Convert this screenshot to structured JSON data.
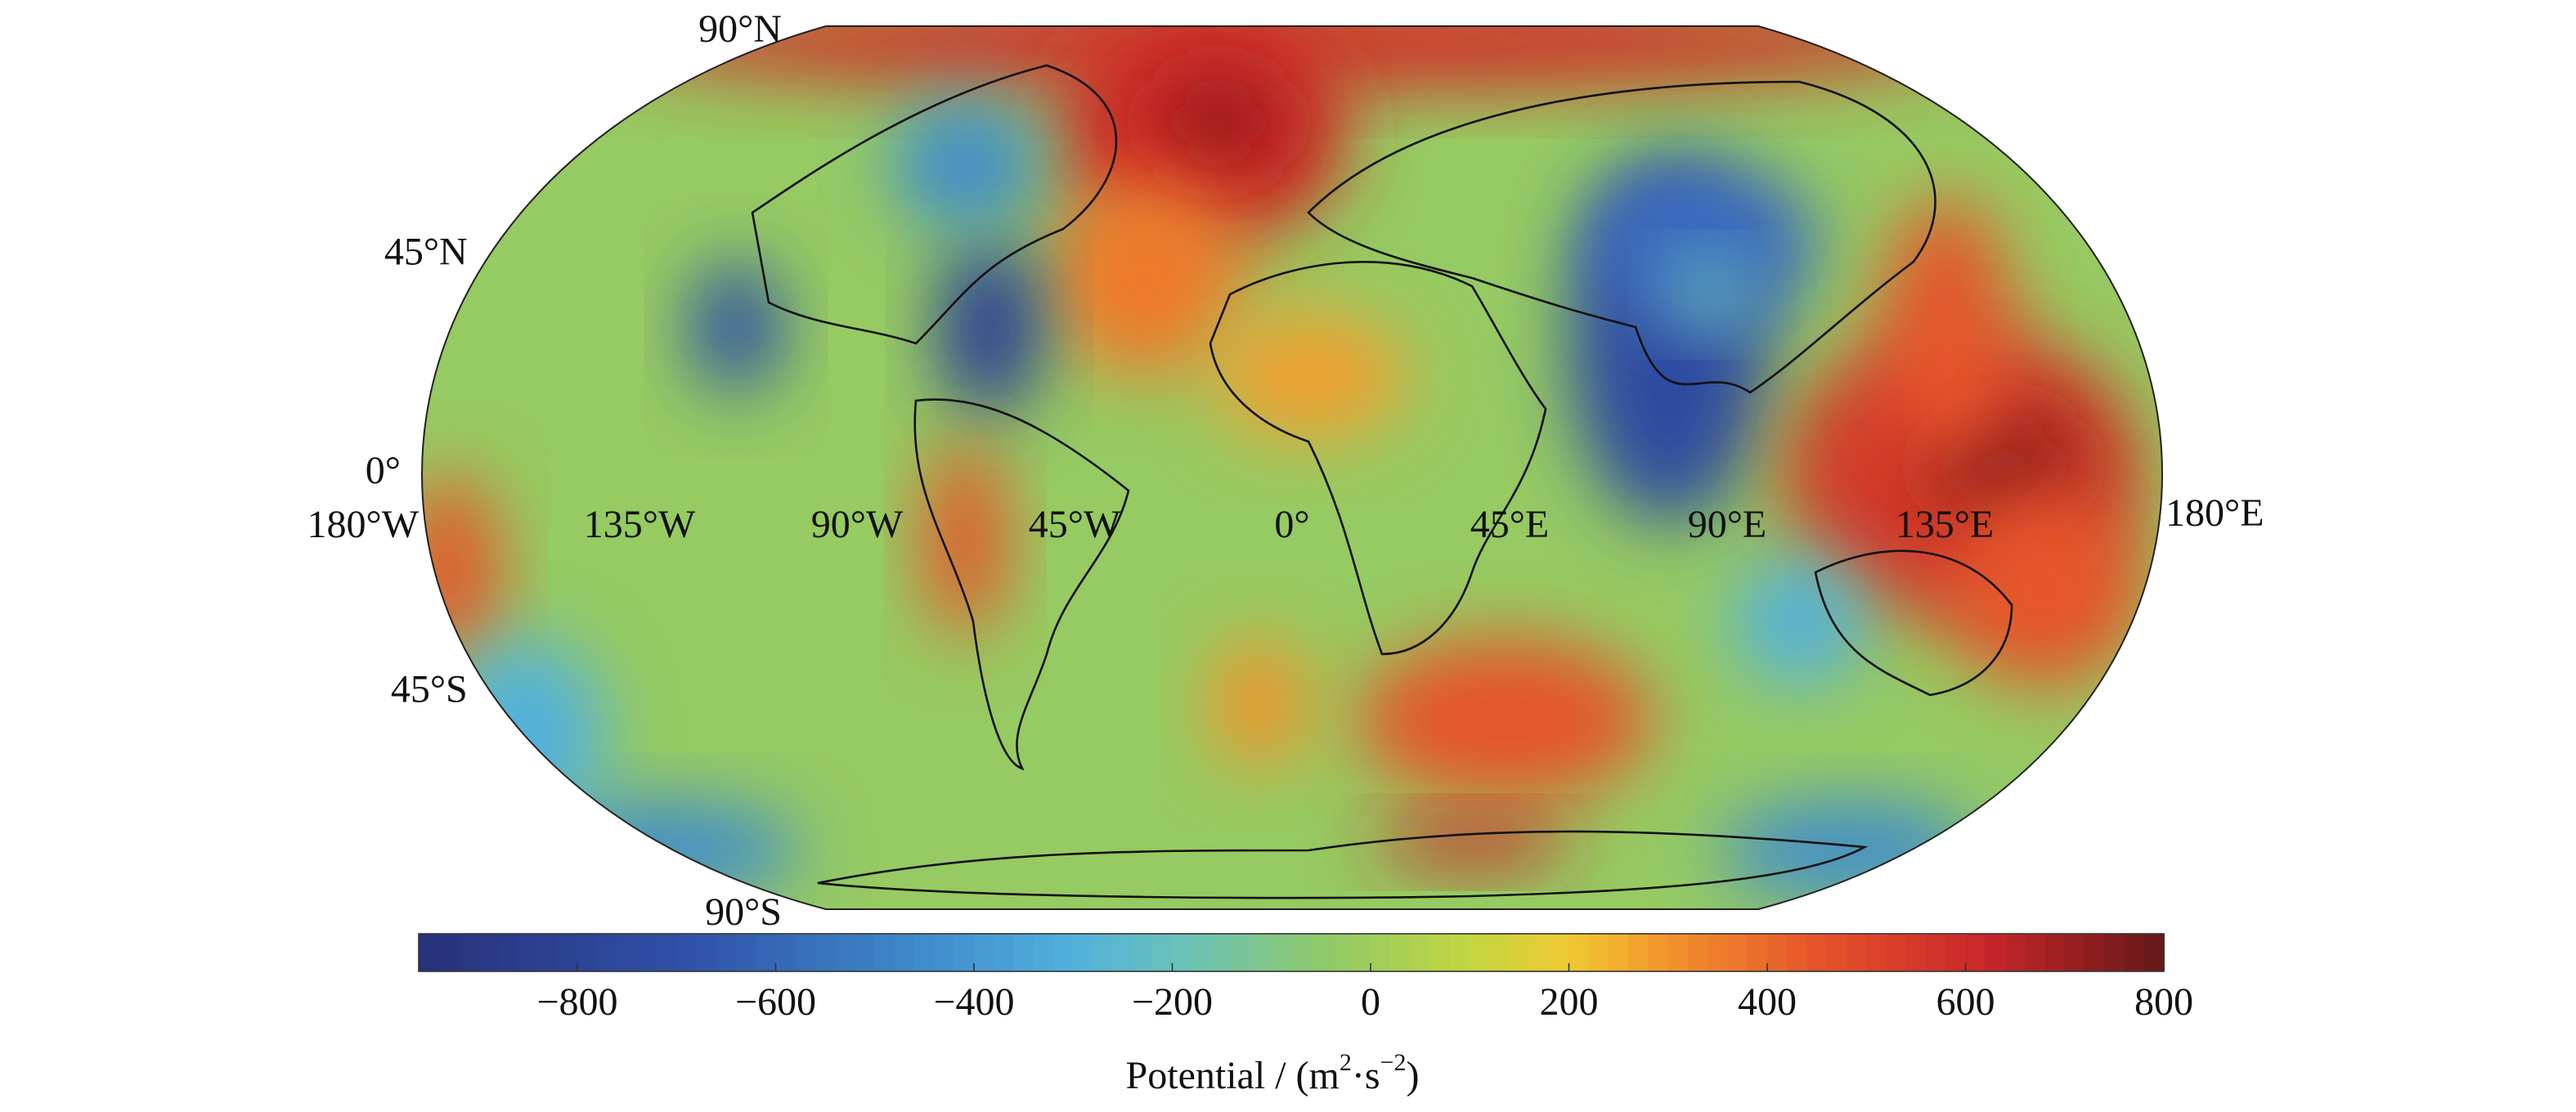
{
  "map": {
    "projection": "robinson",
    "lat_labels": [
      {
        "value": 90,
        "label": "90°N"
      },
      {
        "value": 45,
        "label": "45°N"
      },
      {
        "value": 0,
        "label": "0°"
      },
      {
        "value": -45,
        "label": "45°S"
      },
      {
        "value": -90,
        "label": "90°S"
      }
    ],
    "lon_labels": [
      {
        "value": -180,
        "label": "180°W"
      },
      {
        "value": -135,
        "label": "135°W"
      },
      {
        "value": -90,
        "label": "90°W"
      },
      {
        "value": -45,
        "label": "45°W"
      },
      {
        "value": 0,
        "label": "0°"
      },
      {
        "value": 45,
        "label": "45°E"
      },
      {
        "value": 90,
        "label": "90°E"
      },
      {
        "value": 135,
        "label": "135°E"
      },
      {
        "value": 180,
        "label": "180°E"
      }
    ]
  },
  "colorbar": {
    "lim": [
      -960,
      800
    ],
    "ticks": [
      {
        "value": -800,
        "label": "−800"
      },
      {
        "value": -600,
        "label": "−600"
      },
      {
        "value": -400,
        "label": "−400"
      },
      {
        "value": -200,
        "label": "−200"
      },
      0,
      200,
      400,
      600,
      800
    ],
    "label_parts": [
      "Potential / (m",
      "2",
      "·s",
      "−2",
      ")"
    ],
    "colormap": [
      {
        "value": -960,
        "color": "#28307a"
      },
      {
        "value": -700,
        "color": "#2f4fa6"
      },
      {
        "value": -450,
        "color": "#3f8ccc"
      },
      {
        "value": -300,
        "color": "#52b0dc"
      },
      {
        "value": -180,
        "color": "#6cc2b4"
      },
      {
        "value": -50,
        "color": "#8ec96a"
      },
      {
        "value": 100,
        "color": "#c2d640"
      },
      {
        "value": 200,
        "color": "#f0c932"
      },
      {
        "value": 300,
        "color": "#f2932c"
      },
      {
        "value": 450,
        "color": "#e5542a"
      },
      {
        "value": 620,
        "color": "#c8262a"
      },
      {
        "value": 800,
        "color": "#641818"
      }
    ]
  }
}
